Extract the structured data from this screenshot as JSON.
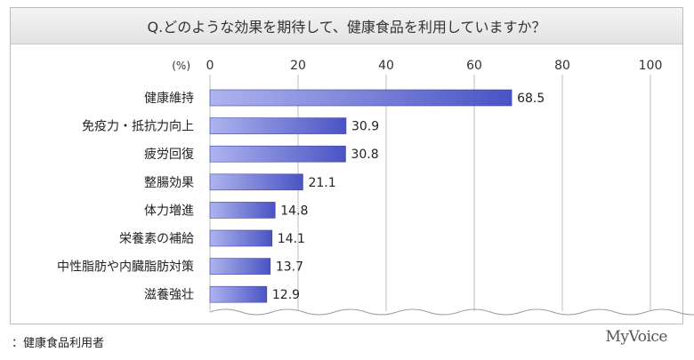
{
  "question": "Q.どのような効果を期待して、健康食品を利用していますか？",
  "footnote": "：健康食品利用者",
  "brand": "MyVoice",
  "chart_data": {
    "type": "bar",
    "orientation": "horizontal",
    "unit_label": "(%)",
    "categories": [
      "健康維持",
      "免疫力・抵抗力向上",
      "疲労回復",
      "整腸効果",
      "体力増進",
      "栄養素の補給",
      "中性脂肪や内臓脂肪対策",
      "滋養強壮"
    ],
    "values": [
      68.5,
      30.9,
      30.8,
      21.1,
      14.8,
      14.1,
      13.7,
      12.9
    ],
    "value_labels": [
      "68.5",
      "30.9",
      "30.8",
      "21.1",
      "14.8",
      "14.1",
      "13.7",
      "12.9"
    ],
    "xlim": [
      0,
      100
    ],
    "ticks": [
      0,
      20,
      40,
      60,
      80,
      100
    ],
    "tick_labels": [
      "0",
      "20",
      "40",
      "60",
      "80",
      "100"
    ],
    "grid": true,
    "bar_color": "#4a53c4",
    "bar_color_light": "#aeb4ee"
  }
}
